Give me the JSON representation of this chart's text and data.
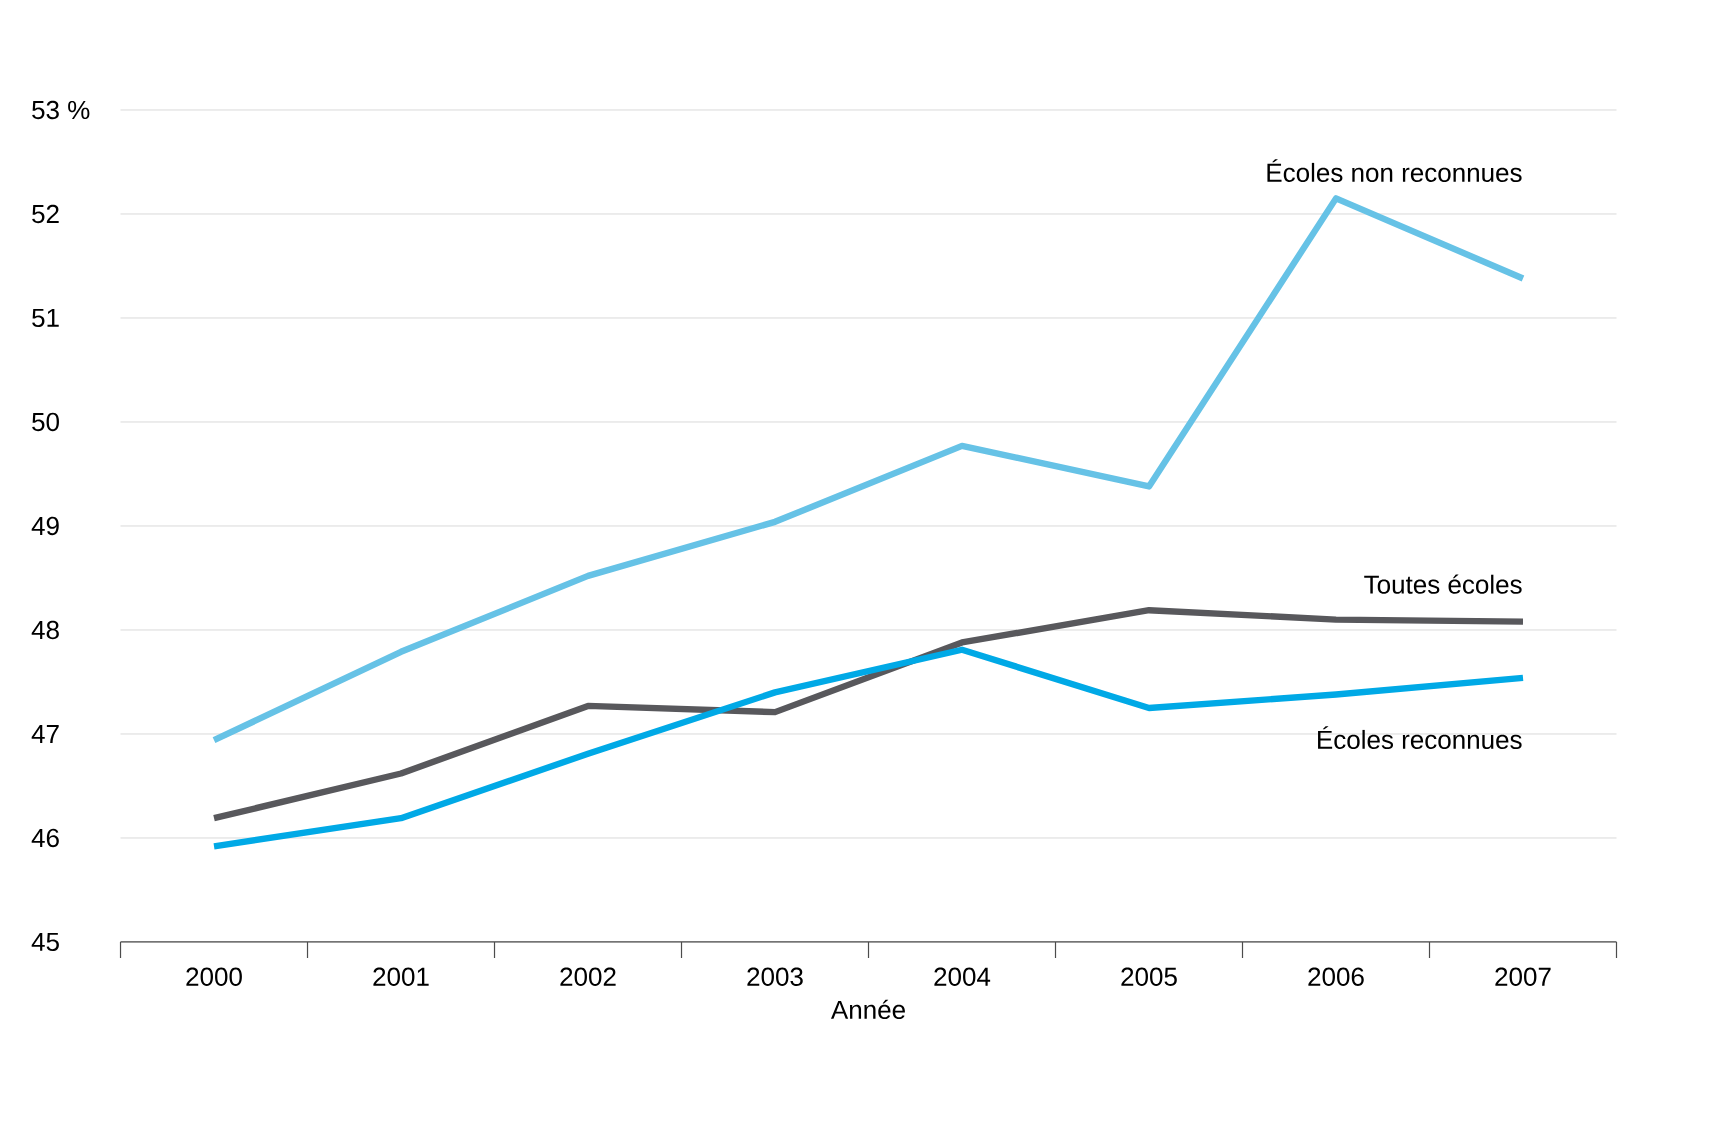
{
  "chart_data": {
    "type": "line",
    "xlabel": "Année",
    "categories": [
      "2000",
      "2001",
      "2002",
      "2003",
      "2004",
      "2005",
      "2006",
      "2007"
    ],
    "series": [
      {
        "name": "Écoles non reconnues",
        "color": "#66c2e6",
        "values": [
          46.94,
          47.79,
          48.52,
          49.04,
          49.77,
          49.38,
          52.15,
          51.38
        ]
      },
      {
        "name": "Toutes écoles",
        "color": "#58585c",
        "values": [
          46.19,
          46.62,
          47.27,
          47.21,
          47.88,
          48.19,
          48.1,
          48.08
        ]
      },
      {
        "name": "Écoles reconnues",
        "color": "#00a9e6",
        "values": [
          45.92,
          46.19,
          46.81,
          47.4,
          47.81,
          47.25,
          47.38,
          47.54
        ]
      }
    ],
    "ylim": [
      45,
      53
    ],
    "yticks": [
      45,
      46,
      47,
      48,
      49,
      50,
      51,
      52,
      {
        "value": 53,
        "label": "53 %"
      }
    ],
    "grid": "y",
    "legend": false,
    "marker": "none",
    "line_style": "solid"
  }
}
